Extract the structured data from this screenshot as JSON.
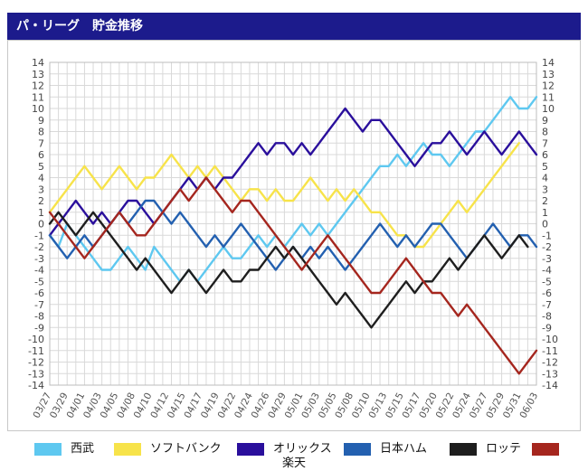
{
  "header": {
    "title": "パ・リーグ　貯金推移"
  },
  "chart_data": {
    "type": "line",
    "title": "パ・リーグ　貯金推移",
    "xlabel": "",
    "ylabel": "",
    "ylim": [
      -14,
      14
    ],
    "yticks": [
      14,
      13,
      12,
      11,
      10,
      9,
      8,
      7,
      6,
      5,
      4,
      3,
      2,
      1,
      0,
      -1,
      -2,
      -3,
      -4,
      -5,
      -6,
      -7,
      -8,
      -9,
      -10,
      -11,
      -12,
      -13,
      -14
    ],
    "grid": true,
    "legend_position": "bottom",
    "x_tick_labels": [
      "03/27",
      "03/29",
      "04/01",
      "04/03",
      "04/05",
      "04/08",
      "04/10",
      "04/12",
      "04/15",
      "04/17",
      "04/19",
      "04/22",
      "04/24",
      "04/26",
      "04/29",
      "05/01",
      "05/03",
      "05/05",
      "05/08",
      "05/10",
      "05/13",
      "05/15",
      "05/17",
      "05/20",
      "05/22",
      "05/24",
      "05/27",
      "05/29",
      "05/31",
      "06/03"
    ],
    "series": [
      {
        "name": "西武",
        "color": "#5ec8f0",
        "values": [
          -1,
          -2,
          0,
          -1,
          -2,
          -3,
          -4,
          -4,
          -3,
          -2,
          -3,
          -4,
          -2,
          -3,
          -4,
          -5,
          -4,
          -5,
          -4,
          -3,
          -2,
          -3,
          -3,
          -2,
          -1,
          -2,
          -1,
          -2,
          -1,
          0,
          -1,
          0,
          -1,
          0,
          1,
          2,
          3,
          4,
          5,
          5,
          6,
          5,
          6,
          7,
          6,
          6,
          5,
          6,
          7,
          8,
          8,
          9,
          10,
          11,
          10,
          10,
          11
        ]
      },
      {
        "name": "ソフトバンク",
        "color": "#f7e34a",
        "values": [
          1,
          2,
          3,
          4,
          5,
          4,
          3,
          4,
          5,
          4,
          3,
          4,
          4,
          5,
          6,
          5,
          4,
          5,
          4,
          5,
          4,
          3,
          2,
          3,
          3,
          2,
          3,
          2,
          2,
          3,
          4,
          3,
          2,
          3,
          2,
          3,
          2,
          1,
          1,
          0,
          -1,
          -1,
          -2,
          -2,
          -1,
          0,
          1,
          2,
          1,
          2,
          3,
          4,
          5,
          6,
          7
        ]
      },
      {
        "name": "オリックス",
        "color": "#2a0f9c",
        "values": [
          -1,
          0,
          1,
          2,
          1,
          0,
          1,
          0,
          1,
          2,
          2,
          1,
          0,
          1,
          2,
          3,
          4,
          3,
          4,
          3,
          4,
          4,
          5,
          6,
          7,
          6,
          7,
          7,
          6,
          7,
          6,
          7,
          8,
          9,
          10,
          9,
          8,
          9,
          9,
          8,
          7,
          6,
          5,
          6,
          7,
          7,
          8,
          7,
          6,
          7,
          8,
          7,
          6,
          7,
          8,
          7,
          6
        ]
      },
      {
        "name": "日本ハム",
        "color": "#2360b0",
        "values": [
          -1,
          -2,
          -3,
          -2,
          -1,
          -2,
          -1,
          0,
          1,
          0,
          1,
          2,
          2,
          1,
          0,
          1,
          0,
          -1,
          -2,
          -1,
          -2,
          -1,
          0,
          -1,
          -2,
          -3,
          -4,
          -3,
          -2,
          -3,
          -2,
          -3,
          -2,
          -3,
          -4,
          -3,
          -2,
          -1,
          0,
          -1,
          -2,
          -1,
          -2,
          -1,
          0,
          0,
          -1,
          -2,
          -3,
          -2,
          -1,
          0,
          -1,
          -2,
          -1,
          -1,
          -2
        ]
      },
      {
        "name": "ロッテ",
        "color": "#1e1e1e",
        "values": [
          0,
          1,
          0,
          -1,
          0,
          1,
          0,
          -1,
          -2,
          -3,
          -4,
          -3,
          -4,
          -5,
          -6,
          -5,
          -4,
          -5,
          -6,
          -5,
          -4,
          -5,
          -5,
          -4,
          -4,
          -3,
          -2,
          -3,
          -2,
          -3,
          -4,
          -5,
          -6,
          -7,
          -6,
          -7,
          -8,
          -9,
          -8,
          -7,
          -6,
          -5,
          -6,
          -5,
          -5,
          -4,
          -3,
          -4,
          -3,
          -2,
          -1,
          -2,
          -3,
          -2,
          -1,
          -2
        ]
      },
      {
        "name": "楽天",
        "color": "#a5261e",
        "values": [
          1,
          0,
          -1,
          -2,
          -3,
          -2,
          -1,
          0,
          1,
          0,
          -1,
          -1,
          0,
          1,
          2,
          3,
          2,
          3,
          4,
          3,
          2,
          1,
          2,
          2,
          1,
          0,
          -1,
          -2,
          -3,
          -4,
          -3,
          -2,
          -1,
          -2,
          -3,
          -4,
          -5,
          -6,
          -6,
          -5,
          -4,
          -3,
          -4,
          -5,
          -6,
          -6,
          -7,
          -8,
          -7,
          -8,
          -9,
          -10,
          -11,
          -12,
          -13,
          -12,
          -11
        ]
      }
    ]
  }
}
